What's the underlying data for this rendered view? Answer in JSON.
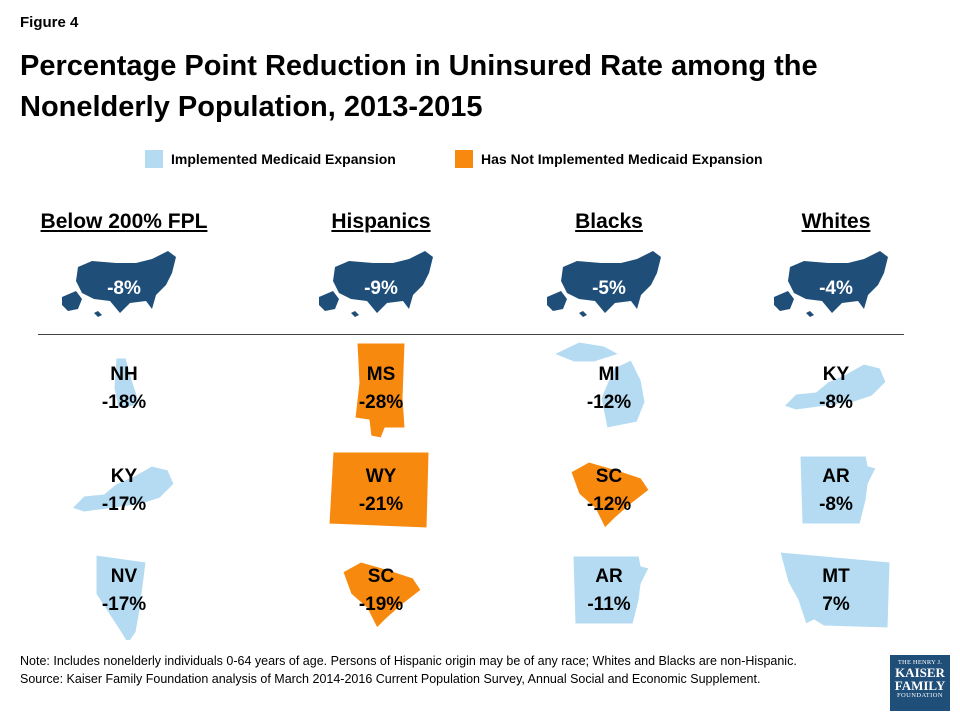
{
  "figure_label": "Figure 4",
  "title": "Percentage Point Reduction in Uninsured Rate among the Nonelderly Population, 2013-2015",
  "legend": {
    "expanded": "Implemented Medicaid Expansion",
    "not_expanded": "Has Not Implemented Medicaid Expansion"
  },
  "colors": {
    "expanded": "#b4dbf2",
    "not_expanded": "#f7890f",
    "us_map": "#1f4e79",
    "divider": "#444444"
  },
  "chart_data": {
    "type": "table",
    "columns": [
      {
        "header": "Below 200% FPL",
        "us_value": "-8%",
        "states": [
          {
            "state": "NH",
            "value": "-18%",
            "expansion": true
          },
          {
            "state": "KY",
            "value": "-17%",
            "expansion": true
          },
          {
            "state": "NV",
            "value": "-17%",
            "expansion": true
          }
        ]
      },
      {
        "header": "Hispanics",
        "us_value": "-9%",
        "states": [
          {
            "state": "MS",
            "value": "-28%",
            "expansion": false
          },
          {
            "state": "WY",
            "value": "-21%",
            "expansion": false
          },
          {
            "state": "SC",
            "value": "-19%",
            "expansion": false
          }
        ]
      },
      {
        "header": "Blacks",
        "us_value": "-5%",
        "states": [
          {
            "state": "MI",
            "value": "-12%",
            "expansion": true
          },
          {
            "state": "SC",
            "value": "-12%",
            "expansion": false
          },
          {
            "state": "AR",
            "value": "-11%",
            "expansion": true
          }
        ]
      },
      {
        "header": "Whites",
        "us_value": "-4%",
        "states": [
          {
            "state": "KY",
            "value": "-8%",
            "expansion": true
          },
          {
            "state": "AR",
            "value": "-8%",
            "expansion": true
          },
          {
            "state": "MT",
            "value": "7%",
            "expansion": true
          }
        ]
      }
    ]
  },
  "notes": {
    "note": "Note: Includes nonelderly individuals 0-64 years of age. Persons of Hispanic origin may be of any race; Whites and Blacks are non-Hispanic.",
    "source": "Source: Kaiser Family Foundation analysis of March 2014-2016 Current Population Survey, Annual Social and Economic Supplement."
  },
  "logo": {
    "line1": "THE HENRY J.",
    "line2": "KAISER",
    "line3": "FAMILY",
    "line4": "FOUNDATION"
  }
}
